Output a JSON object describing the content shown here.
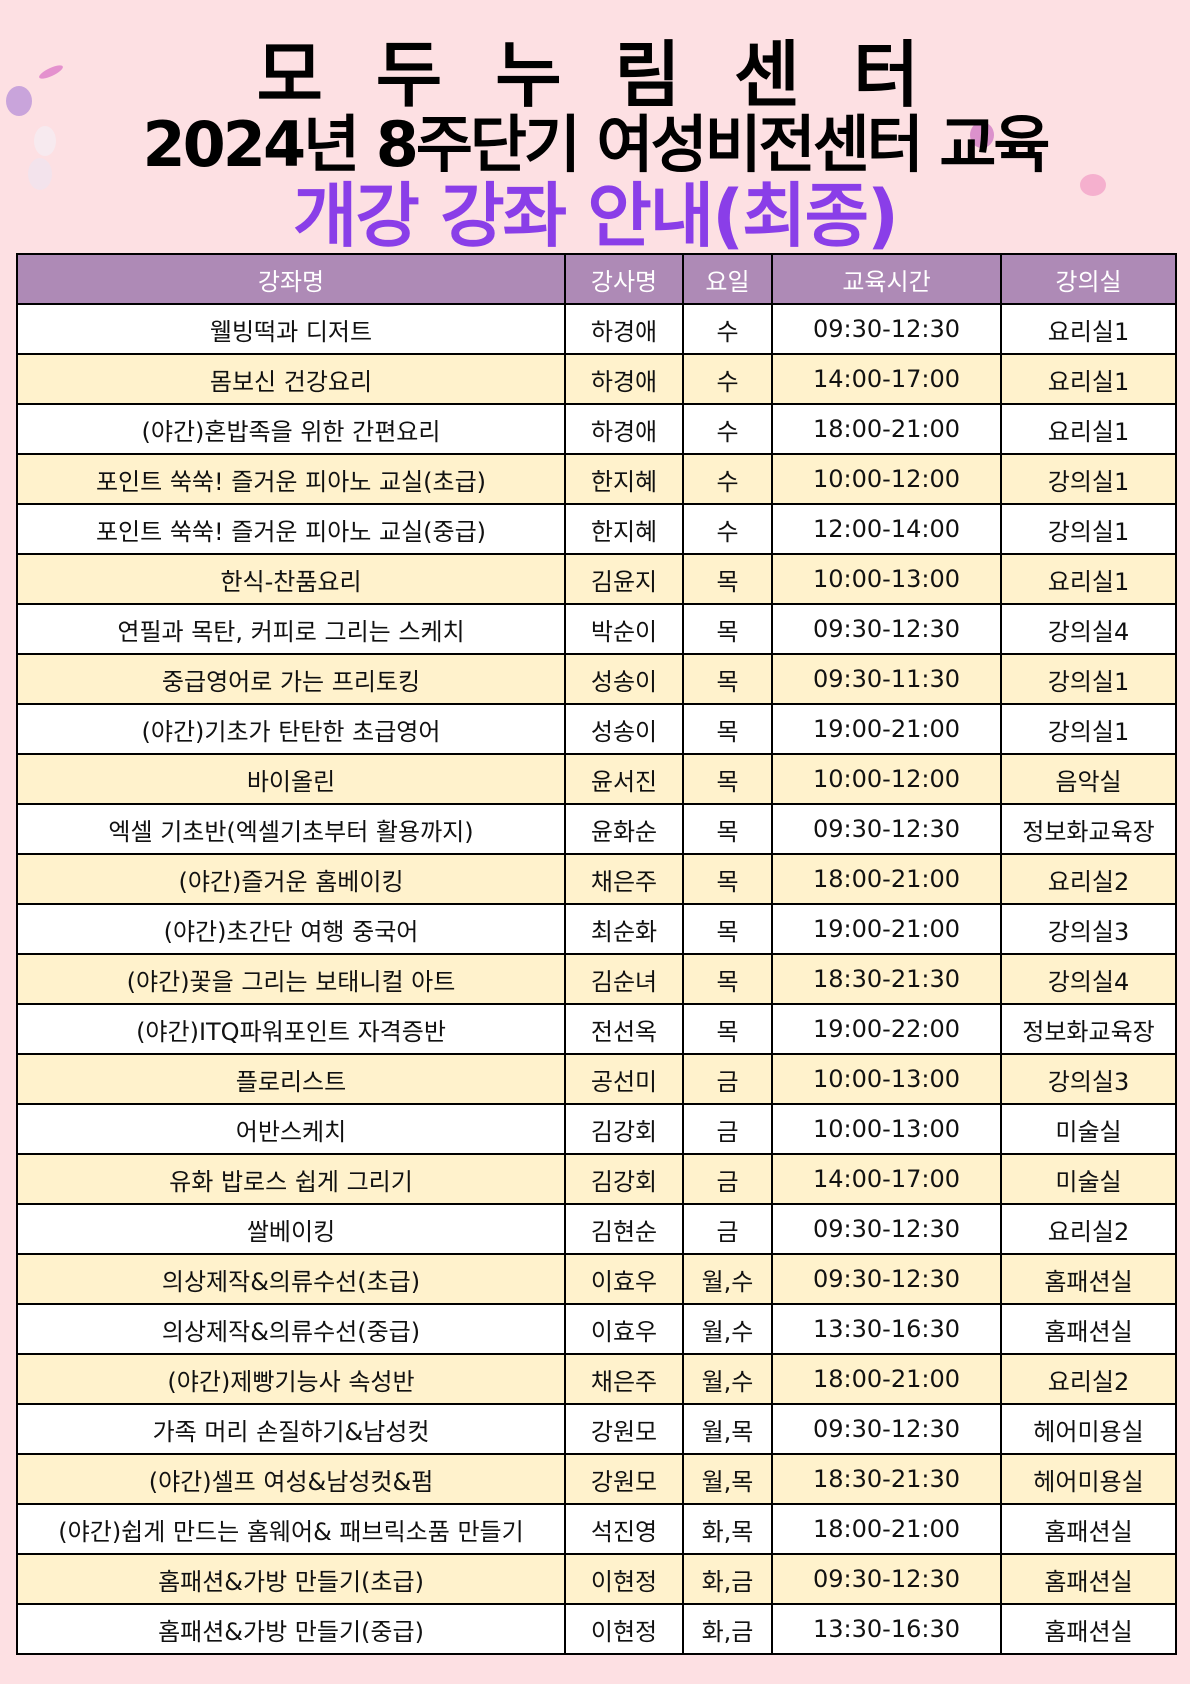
{
  "title": {
    "line1": "모 두 누 림 센 터",
    "line2": "2024년 8주단기 여성비전센터 교육",
    "line3": "개강 강좌 안내(최종)"
  },
  "colors": {
    "background": "#fde0e3",
    "header": "#ae8ab6",
    "accent_title": "#8a3ee8",
    "row_alt": "#fff2cc"
  },
  "table": {
    "headers": [
      "강좌명",
      "강사명",
      "요일",
      "교육시간",
      "강의실"
    ],
    "rows": [
      [
        "웰빙떡과 디저트",
        "하경애",
        "수",
        "09:30-12:30",
        "요리실1"
      ],
      [
        "몸보신 건강요리",
        "하경애",
        "수",
        "14:00-17:00",
        "요리실1"
      ],
      [
        "(야간)혼밥족을 위한 간편요리",
        "하경애",
        "수",
        "18:00-21:00",
        "요리실1"
      ],
      [
        "포인트 쑥쑥! 즐거운 피아노 교실(초급)",
        "한지혜",
        "수",
        "10:00-12:00",
        "강의실1"
      ],
      [
        "포인트 쑥쑥! 즐거운 피아노 교실(중급)",
        "한지혜",
        "수",
        "12:00-14:00",
        "강의실1"
      ],
      [
        "한식-찬품요리",
        "김윤지",
        "목",
        "10:00-13:00",
        "요리실1"
      ],
      [
        "연필과 목탄, 커피로 그리는 스케치",
        "박순이",
        "목",
        "09:30-12:30",
        "강의실4"
      ],
      [
        "중급영어로 가는 프리토킹",
        "성송이",
        "목",
        "09:30-11:30",
        "강의실1"
      ],
      [
        "(야간)기초가 탄탄한 초급영어",
        "성송이",
        "목",
        "19:00-21:00",
        "강의실1"
      ],
      [
        "바이올린",
        "윤서진",
        "목",
        "10:00-12:00",
        "음악실"
      ],
      [
        "엑셀 기초반(엑셀기초부터 활용까지)",
        "윤화순",
        "목",
        "09:30-12:30",
        "정보화교육장"
      ],
      [
        "(야간)즐거운 홈베이킹",
        "채은주",
        "목",
        "18:00-21:00",
        "요리실2"
      ],
      [
        "(야간)초간단 여행 중국어",
        "최순화",
        "목",
        "19:00-21:00",
        "강의실3"
      ],
      [
        "(야간)꽃을 그리는 보태니컬 아트",
        "김순녀",
        "목",
        "18:30-21:30",
        "강의실4"
      ],
      [
        "(야간)ITQ파워포인트 자격증반",
        "전선옥",
        "목",
        "19:00-22:00",
        "정보화교육장"
      ],
      [
        "플로리스트",
        "공선미",
        "금",
        "10:00-13:00",
        "강의실3"
      ],
      [
        "어반스케치",
        "김강회",
        "금",
        "10:00-13:00",
        "미술실"
      ],
      [
        "유화 밥로스 쉽게 그리기",
        "김강회",
        "금",
        "14:00-17:00",
        "미술실"
      ],
      [
        "쌀베이킹",
        "김현순",
        "금",
        "09:30-12:30",
        "요리실2"
      ],
      [
        "의상제작&의류수선(초급)",
        "이효우",
        "월,수",
        "09:30-12:30",
        "홈패션실"
      ],
      [
        "의상제작&의류수선(중급)",
        "이효우",
        "월,수",
        "13:30-16:30",
        "홈패션실"
      ],
      [
        "(야간)제빵기능사 속성반",
        "채은주",
        "월,수",
        "18:00-21:00",
        "요리실2"
      ],
      [
        "가족 머리 손질하기&남성컷",
        "강원모",
        "월,목",
        "09:30-12:30",
        "헤어미용실"
      ],
      [
        "(야간)셀프 여성&남성컷&펌",
        "강원모",
        "월,목",
        "18:30-21:30",
        "헤어미용실"
      ],
      [
        "(야간)쉽게 만드는 홈웨어& 패브릭소품 만들기",
        "석진영",
        "화,목",
        "18:00-21:00",
        "홈패션실"
      ],
      [
        "홈패션&가방 만들기(초급)",
        "이현정",
        "화,금",
        "09:30-12:30",
        "홈패션실"
      ],
      [
        "홈패션&가방 만들기(중급)",
        "이현정",
        "화,금",
        "13:30-16:30",
        "홈패션실"
      ]
    ]
  }
}
